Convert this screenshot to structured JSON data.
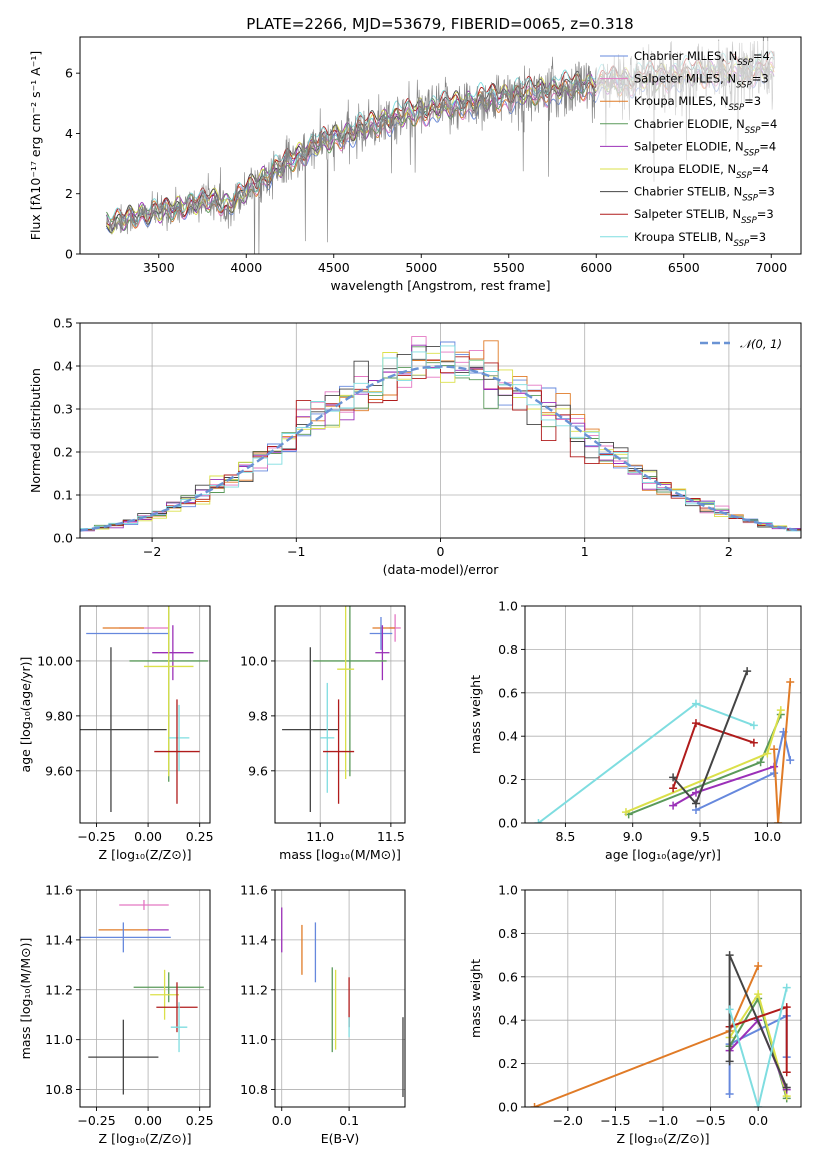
{
  "figure_title": "PLATE=2266, MJD=53679, FIBERID=0065, z=0.318",
  "colors": {
    "Chabrier MILES": "#6688dd",
    "Salpeter MILES": "#e377c2",
    "Kroupa MILES": "#e07b27",
    "Chabrier ELODIE": "#5a9a5a",
    "Salpeter ELODIE": "#9b30b8",
    "Kroupa ELODIE": "#dbe04a",
    "Chabrier STELIB": "#444444",
    "Salpeter STELIB": "#b01c1c",
    "Kroupa STELIB": "#7fdde0",
    "gaussian": "#6a93d4"
  },
  "chart_data": [
    {
      "id": "spectrum",
      "type": "line",
      "title": "",
      "xlabel": "wavelength [Angstrom, rest frame]",
      "ylabel": "Flux [fλ10⁻¹⁷ erg cm⁻² s⁻¹ A⁻¹]",
      "xlim": [
        3050,
        7170
      ],
      "ylim": [
        0,
        7.2
      ],
      "xticks": [
        3500,
        4000,
        4500,
        5000,
        5500,
        6000,
        6500,
        7000
      ],
      "yticks": [
        0,
        2,
        4,
        6
      ],
      "grid": false,
      "legend_position": "top-right",
      "x_range": [
        3200,
        7020
      ],
      "continuum": [
        [
          3200,
          1.0
        ],
        [
          3400,
          1.3
        ],
        [
          3600,
          1.5
        ],
        [
          3800,
          1.8
        ],
        [
          3900,
          1.6
        ],
        [
          4000,
          2.1
        ],
        [
          4200,
          2.9
        ],
        [
          4400,
          3.6
        ],
        [
          4600,
          4.0
        ],
        [
          4800,
          4.4
        ],
        [
          5000,
          4.7
        ],
        [
          5200,
          4.9
        ],
        [
          5500,
          5.2
        ],
        [
          6000,
          5.6
        ],
        [
          6500,
          5.9
        ],
        [
          7020,
          6.1
        ]
      ],
      "legend": [
        {
          "name": "Chabrier MILES",
          "nssp": "4"
        },
        {
          "name": "Salpeter MILES",
          "nssp": "3"
        },
        {
          "name": "Kroupa MILES",
          "nssp": "3"
        },
        {
          "name": "Chabrier ELODIE",
          "nssp": "4"
        },
        {
          "name": "Salpeter ELODIE",
          "nssp": "4"
        },
        {
          "name": "Kroupa ELODIE",
          "nssp": "4"
        },
        {
          "name": "Chabrier STELIB",
          "nssp": "3"
        },
        {
          "name": "Salpeter STELIB",
          "nssp": "3"
        },
        {
          "name": "Kroupa STELIB",
          "nssp": "3"
        }
      ]
    },
    {
      "id": "residuals",
      "type": "line",
      "title": "",
      "xlabel": "(data-model)/error",
      "ylabel": "Normed distribution",
      "xlim": [
        -2.5,
        2.5
      ],
      "ylim": [
        0,
        0.5
      ],
      "xticks": [
        -2,
        -1,
        0,
        1,
        2
      ],
      "yticks": [
        0.0,
        0.1,
        0.2,
        0.3,
        0.4,
        0.5
      ],
      "grid": true,
      "legend_position": "top-right",
      "legend_label": "𝒩(0, 1)",
      "bin_width": 0.1
    },
    {
      "id": "age_vs_Z",
      "type": "scatter",
      "xlabel": "Z [log₁₀(Z/Z⊙)]",
      "ylabel": "age  [log₁₀(age/yr)]",
      "xlim": [
        -0.33,
        0.3
      ],
      "ylim": [
        9.41,
        10.2
      ],
      "xticks": [
        -0.25,
        0.0,
        0.25
      ],
      "yticks": [
        9.6,
        9.8,
        10.0
      ],
      "grid": true,
      "points": [
        {
          "series": "Salpeter MILES",
          "x": -0.02,
          "xerr": 0.12,
          "y": 10.12,
          "yerr": 0.0
        },
        {
          "series": "Kroupa MILES",
          "x": -0.12,
          "xerr": 0.1,
          "y": 10.12,
          "yerr": 0.0
        },
        {
          "series": "Chabrier MILES",
          "x": -0.1,
          "xerr": 0.2,
          "y": 10.1,
          "yerr": 0.0
        },
        {
          "series": "Salpeter ELODIE",
          "x": 0.12,
          "xerr": 0.1,
          "y": 10.03,
          "yerr": 0.1
        },
        {
          "series": "Chabrier ELODIE",
          "x": 0.1,
          "xerr": 0.19,
          "y": 10.0,
          "yerr": 0.44
        },
        {
          "series": "Kroupa ELODIE",
          "x": 0.1,
          "xerr": 0.12,
          "y": 9.98,
          "yerr": 0.4
        },
        {
          "series": "Chabrier STELIB",
          "x": -0.18,
          "xerr": 0.27,
          "y": 9.75,
          "yerr": 0.3
        },
        {
          "series": "Kroupa STELIB",
          "x": 0.15,
          "xerr": 0.05,
          "y": 9.72,
          "yerr": 0.12
        },
        {
          "series": "Salpeter STELIB",
          "x": 0.14,
          "xerr": 0.11,
          "y": 9.67,
          "yerr": 0.19
        }
      ]
    },
    {
      "id": "age_vs_mass",
      "type": "scatter",
      "xlabel": "mass [log₁₀(M/M⊙)]",
      "ylabel": "",
      "xlim": [
        10.68,
        11.6
      ],
      "ylim": [
        9.41,
        10.2
      ],
      "xticks": [
        11.0,
        11.5
      ],
      "yticks": [
        9.6,
        9.8,
        10.0
      ],
      "grid": true,
      "points": [
        {
          "series": "Salpeter MILES",
          "x": 11.53,
          "xerr": 0.04,
          "y": 10.12,
          "yerr": 0.05
        },
        {
          "series": "Kroupa MILES",
          "x": 11.45,
          "xerr": 0.08,
          "y": 10.12,
          "yerr": 0.0
        },
        {
          "series": "Chabrier MILES",
          "x": 11.43,
          "xerr": 0.08,
          "y": 10.1,
          "yerr": 0.06
        },
        {
          "series": "Salpeter ELODIE",
          "x": 11.44,
          "xerr": 0.05,
          "y": 10.03,
          "yerr": 0.1
        },
        {
          "series": "Chabrier ELODIE",
          "x": 11.21,
          "xerr": 0.26,
          "y": 10.0,
          "yerr": 0.42
        },
        {
          "series": "Kroupa ELODIE",
          "x": 11.18,
          "xerr": 0.06,
          "y": 9.97,
          "yerr": 0.4
        },
        {
          "series": "Chabrier STELIB",
          "x": 10.93,
          "xerr": 0.2,
          "y": 9.75,
          "yerr": 0.3
        },
        {
          "series": "Kroupa STELIB",
          "x": 11.05,
          "xerr": 0.05,
          "y": 9.72,
          "yerr": 0.2
        },
        {
          "series": "Salpeter STELIB",
          "x": 11.13,
          "xerr": 0.11,
          "y": 9.67,
          "yerr": 0.19
        }
      ]
    },
    {
      "id": "weight_vs_age",
      "type": "line",
      "xlabel": "age  [log₁₀(age/yr)]",
      "ylabel": "mass weight",
      "xlim": [
        8.2,
        10.25
      ],
      "ylim": [
        0,
        1.0
      ],
      "xticks": [
        8.5,
        9.0,
        9.5,
        10.0
      ],
      "yticks": [
        0.0,
        0.2,
        0.4,
        0.6,
        0.8,
        1.0
      ],
      "grid": true,
      "series": [
        {
          "name": "Kroupa STELIB",
          "points": [
            [
              8.3,
              0.0
            ],
            [
              9.47,
              0.55
            ],
            [
              9.9,
              0.45
            ]
          ]
        },
        {
          "name": "Chabrier MILES",
          "points": [
            [
              9.47,
              0.06
            ],
            [
              10.05,
              0.23
            ],
            [
              10.12,
              0.42
            ],
            [
              10.17,
              0.29
            ]
          ]
        },
        {
          "name": "Chabrier ELODIE",
          "points": [
            [
              8.97,
              0.04
            ],
            [
              9.95,
              0.28
            ],
            [
              10.1,
              0.5
            ]
          ]
        },
        {
          "name": "Kroupa ELODIE",
          "points": [
            [
              8.95,
              0.05
            ],
            [
              10.0,
              0.32
            ],
            [
              10.1,
              0.52
            ]
          ]
        },
        {
          "name": "Salpeter ELODIE",
          "points": [
            [
              9.3,
              0.08
            ],
            [
              9.47,
              0.14
            ],
            [
              10.05,
              0.26
            ]
          ]
        },
        {
          "name": "Salpeter STELIB",
          "points": [
            [
              9.3,
              0.16
            ],
            [
              9.47,
              0.46
            ],
            [
              9.9,
              0.37
            ]
          ]
        },
        {
          "name": "Chabrier STELIB",
          "points": [
            [
              9.3,
              0.21
            ],
            [
              9.47,
              0.09
            ],
            [
              9.85,
              0.7
            ]
          ]
        },
        {
          "name": "Kroupa MILES",
          "points": [
            [
              10.05,
              0.34
            ],
            [
              10.08,
              0.0
            ],
            [
              10.17,
              0.65
            ]
          ]
        }
      ]
    },
    {
      "id": "mass_vs_Z",
      "type": "scatter",
      "xlabel": "Z [log₁₀(Z/Z⊙)]",
      "ylabel": "mass [log₁₀(M/M⊙)]",
      "xlim": [
        -0.33,
        0.3
      ],
      "ylim": [
        10.73,
        11.6
      ],
      "xticks": [
        -0.25,
        0.0,
        0.25
      ],
      "yticks": [
        10.8,
        11.0,
        11.2,
        11.4,
        11.6
      ],
      "grid": true,
      "points": [
        {
          "series": "Salpeter MILES",
          "x": -0.02,
          "xerr": 0.12,
          "y": 11.54,
          "yerr": 0.02
        },
        {
          "series": "Kroupa MILES",
          "x": -0.12,
          "xerr": 0.12,
          "y": 11.44,
          "yerr": 0.0
        },
        {
          "series": "Salpeter ELODIE",
          "x": 0.05,
          "xerr": 0.05,
          "y": 11.44,
          "yerr": 0.0
        },
        {
          "series": "Chabrier MILES",
          "x": -0.12,
          "xerr": 0.23,
          "y": 11.41,
          "yerr": 0.06
        },
        {
          "series": "Chabrier ELODIE",
          "x": 0.1,
          "xerr": 0.17,
          "y": 11.21,
          "yerr": 0.06
        },
        {
          "series": "Kroupa ELODIE",
          "x": 0.08,
          "xerr": 0.07,
          "y": 11.18,
          "yerr": 0.1
        },
        {
          "series": "Salpeter STELIB",
          "x": 0.14,
          "xerr": 0.1,
          "y": 11.13,
          "yerr": 0.1
        },
        {
          "series": "Kroupa STELIB",
          "x": 0.15,
          "xerr": 0.04,
          "y": 11.05,
          "yerr": 0.1
        },
        {
          "series": "Chabrier STELIB",
          "x": -0.12,
          "xerr": 0.17,
          "y": 10.93,
          "yerr": 0.15
        }
      ]
    },
    {
      "id": "mass_vs_EBV",
      "type": "scatter",
      "xlabel": "E(B-V)",
      "ylabel": "",
      "xlim": [
        -0.01,
        0.183
      ],
      "ylim": [
        10.73,
        11.6
      ],
      "xticks": [
        0.0,
        0.1
      ],
      "yticks": [
        10.8,
        11.0,
        11.2,
        11.4,
        11.6
      ],
      "grid": true,
      "points": [
        {
          "series": "Salpeter ELODIE",
          "x": 0.0,
          "y": 11.44,
          "yerr": 0.09
        },
        {
          "series": "Kroupa MILES",
          "x": 0.03,
          "y": 11.36,
          "yerr": 0.1
        },
        {
          "series": "Chabrier MILES",
          "x": 0.05,
          "y": 11.35,
          "yerr": 0.12
        },
        {
          "series": "Chabrier ELODIE",
          "x": 0.075,
          "y": 11.12,
          "yerr": 0.17
        },
        {
          "series": "Kroupa ELODIE",
          "x": 0.08,
          "y": 11.12,
          "yerr": 0.16
        },
        {
          "series": "Salpeter STELIB",
          "x": 0.1,
          "y": 11.15,
          "yerr": 0.1
        },
        {
          "series": "Kroupa STELIB",
          "x": 0.1,
          "y": 11.05,
          "yerr": 0.04
        },
        {
          "series": "Chabrier STELIB",
          "x": 0.18,
          "y": 10.93,
          "yerr": 0.16
        }
      ]
    },
    {
      "id": "weight_vs_Z",
      "type": "line",
      "xlabel": "Z [log₁₀(Z/Z⊙)]",
      "ylabel": "mass weight",
      "xlim": [
        -2.45,
        0.45
      ],
      "ylim": [
        0,
        1.0
      ],
      "xticks": [
        -2.0,
        -1.5,
        -1.0,
        -0.5,
        0.0
      ],
      "yticks": [
        0.0,
        0.2,
        0.4,
        0.6,
        0.8,
        1.0
      ],
      "grid": true,
      "series": [
        {
          "name": "Kroupa MILES",
          "points": [
            [
              -2.35,
              0.0
            ],
            [
              -0.3,
              0.35
            ],
            [
              0.0,
              0.65
            ]
          ]
        },
        {
          "name": "Chabrier MILES",
          "points": [
            [
              -0.3,
              0.06
            ],
            [
              -0.3,
              0.29
            ],
            [
              0.3,
              0.42
            ],
            [
              0.3,
              0.23
            ]
          ]
        },
        {
          "name": "Chabrier ELODIE",
          "points": [
            [
              -0.3,
              0.28
            ],
            [
              0.0,
              0.5
            ],
            [
              0.3,
              0.04
            ]
          ]
        },
        {
          "name": "Kroupa ELODIE",
          "points": [
            [
              -0.3,
              0.32
            ],
            [
              0.0,
              0.52
            ],
            [
              0.3,
              0.05
            ]
          ]
        },
        {
          "name": "Salpeter ELODIE",
          "points": [
            [
              -0.3,
              0.26
            ],
            [
              0.0,
              0.4
            ],
            [
              0.3,
              0.08
            ]
          ]
        },
        {
          "name": "Salpeter STELIB",
          "points": [
            [
              -0.3,
              0.37
            ],
            [
              0.3,
              0.46
            ],
            [
              0.3,
              0.16
            ]
          ]
        },
        {
          "name": "Chabrier STELIB",
          "points": [
            [
              -0.3,
              0.21
            ],
            [
              -0.3,
              0.7
            ],
            [
              0.3,
              0.09
            ]
          ]
        },
        {
          "name": "Kroupa STELIB",
          "points": [
            [
              -0.3,
              0.45
            ],
            [
              0.0,
              0.0
            ],
            [
              0.3,
              0.55
            ]
          ]
        }
      ]
    }
  ]
}
